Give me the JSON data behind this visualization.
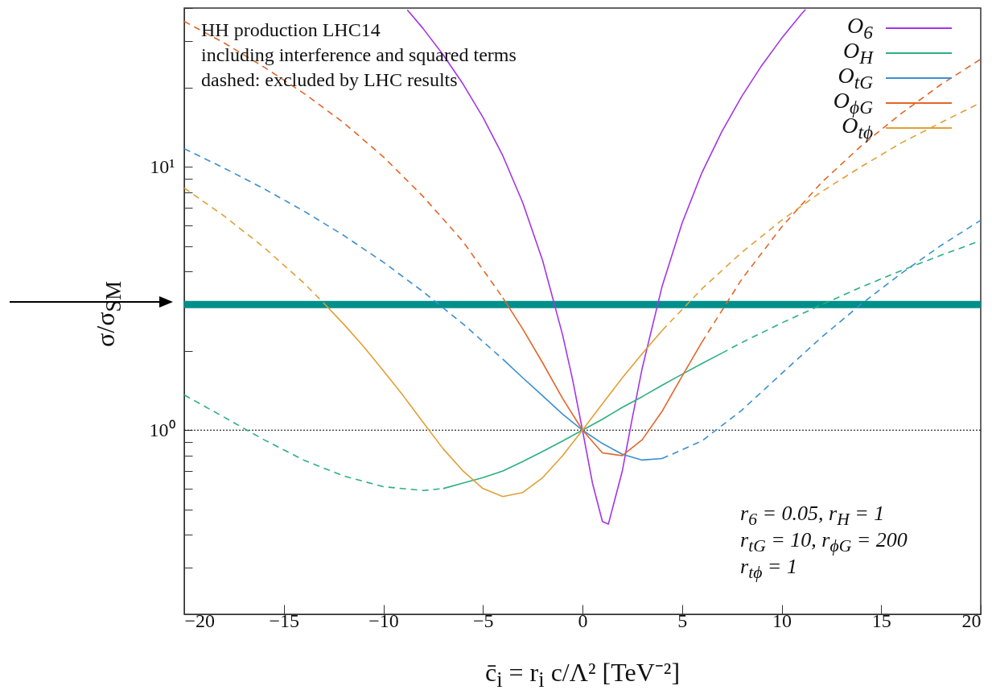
{
  "chart_data": {
    "type": "line",
    "xlabel": "c̄$_{i}$ = r$_{i}$ c/Λ² [TeV⁻²]",
    "ylabel": "σ/σ$_{SM}$",
    "log": "y",
    "xlim": [
      -20,
      20
    ],
    "xticks": [
      -20,
      -15,
      -10,
      -5,
      0,
      5,
      10,
      15,
      20
    ],
    "ylim": [
      0.2,
      40
    ],
    "yticks": [
      {
        "value": 0.2,
        "label": null
      },
      {
        "value": 0.3,
        "label": null
      },
      {
        "value": 0.4,
        "label": null
      },
      {
        "value": 0.5,
        "label": null
      },
      {
        "value": 0.6,
        "label": null
      },
      {
        "value": 0.7,
        "label": null
      },
      {
        "value": 0.8,
        "label": null
      },
      {
        "value": 0.9,
        "label": null
      },
      {
        "value": 1,
        "label": "10⁰"
      },
      {
        "value": 2,
        "label": null
      },
      {
        "value": 3,
        "label": null
      },
      {
        "value": 4,
        "label": null
      },
      {
        "value": 5,
        "label": null
      },
      {
        "value": 6,
        "label": null
      },
      {
        "value": 7,
        "label": null
      },
      {
        "value": 8,
        "label": null
      },
      {
        "value": 9,
        "label": null
      },
      {
        "value": 10,
        "label": "10¹"
      },
      {
        "value": 20,
        "label": null
      },
      {
        "value": 30,
        "label": null
      },
      {
        "value": 40,
        "label": null
      }
    ],
    "legend": "top right",
    "series": [
      {
        "name": "O$_{6}$",
        "color": "#a335e8",
        "line_style": "solid",
        "x": [
          -8.8,
          -8,
          -7,
          -6,
          -5,
          -4,
          -3,
          -2,
          -1,
          -0.5,
          0,
          0.5,
          1,
          1.3,
          2,
          2.5,
          3,
          4,
          5,
          6,
          7,
          8,
          9,
          10,
          11,
          11.2
        ],
        "values": [
          39.4,
          33.4,
          26.6,
          20.6,
          15.4,
          11.0,
          7.3,
          4.4,
          2.3,
          1.56,
          1,
          0.63,
          0.45,
          0.44,
          0.7,
          1.11,
          1.72,
          3.52,
          6.1,
          9.5,
          13.6,
          18.5,
          24.2,
          30.7,
          38.0,
          39.5
        ]
      },
      {
        "name": "O$_{H}$",
        "color": "#2db07f",
        "line_style": "solid",
        "x": [
          -7,
          -6,
          -5,
          -4,
          -3,
          -2,
          -1,
          0,
          1,
          2,
          3,
          4,
          5,
          6,
          7
        ],
        "values": [
          0.6,
          0.63,
          0.66,
          0.7,
          0.76,
          0.83,
          0.91,
          1,
          1.1,
          1.22,
          1.34,
          1.48,
          1.63,
          1.79,
          1.96
        ]
      },
      {
        "name": "O$_{tG}$",
        "color": "#3a8fd0",
        "line_style": "solid",
        "x": [
          -4,
          -3,
          -2,
          -1,
          0,
          1,
          2,
          3,
          4
        ],
        "values": [
          1.86,
          1.58,
          1.35,
          1.15,
          1,
          0.89,
          0.81,
          0.77,
          0.78
        ]
      },
      {
        "name": "O$_{ϕG}$",
        "color": "#e2662a",
        "line_style": "solid",
        "x": [
          -4,
          -3,
          -2,
          -1,
          0,
          1,
          2,
          3,
          4,
          5,
          6
        ],
        "values": [
          3.18,
          2.42,
          1.8,
          1.32,
          1,
          0.82,
          0.8,
          0.92,
          1.18,
          1.6,
          2.16
        ]
      },
      {
        "name": "O$_{tϕ}$",
        "color": "#e0a035",
        "line_style": "solid",
        "x": [
          -13,
          -12,
          -11,
          -10,
          -9,
          -8,
          -7,
          -6,
          -5,
          -4,
          -3,
          -2,
          -1,
          0,
          1,
          2,
          3,
          4
        ],
        "values": [
          3.04,
          2.53,
          2.08,
          1.68,
          1.35,
          1.07,
          0.85,
          0.7,
          0.6,
          0.56,
          0.58,
          0.66,
          0.8,
          1,
          1.26,
          1.58,
          1.95,
          2.39
        ]
      },
      {
        "color": "#2db07f",
        "line_style": "dashed",
        "x": [
          -20,
          -18,
          -16,
          -14,
          -12,
          -10,
          -8,
          -7
        ],
        "values": [
          1.36,
          1.12,
          0.92,
          0.77,
          0.67,
          0.61,
          0.59,
          0.6
        ]
      },
      {
        "color": "#2db07f",
        "line_style": "dashed",
        "x": [
          7,
          8,
          10,
          12,
          14,
          16,
          18,
          20
        ],
        "values": [
          1.96,
          2.15,
          2.55,
          2.99,
          3.49,
          4.03,
          4.61,
          5.24
        ]
      },
      {
        "color": "#3a8fd0",
        "line_style": "dashed",
        "x": [
          -20,
          -18,
          -16,
          -14,
          -12,
          -10,
          -8,
          -6,
          -4
        ],
        "values": [
          11.7,
          9.88,
          8.25,
          6.79,
          5.49,
          4.34,
          3.35,
          2.53,
          1.86
        ]
      },
      {
        "color": "#3a8fd0",
        "line_style": "dashed",
        "x": [
          4,
          6,
          8,
          10,
          12,
          14,
          16,
          18,
          20
        ],
        "values": [
          0.78,
          0.91,
          1.19,
          1.64,
          2.25,
          3.01,
          3.93,
          5.02,
          6.26
        ]
      },
      {
        "color": "#e2662a",
        "line_style": "dashed",
        "x": [
          -20,
          -18,
          -16,
          -14,
          -12,
          -10,
          -8,
          -6,
          -4
        ],
        "values": [
          35.6,
          29.5,
          23.9,
          19.0,
          14.7,
          10.9,
          7.7,
          5.2,
          3.18
        ]
      },
      {
        "color": "#e2662a",
        "line_style": "dashed",
        "x": [
          6,
          8,
          10,
          12,
          14,
          16,
          18,
          20
        ],
        "values": [
          2.16,
          3.74,
          5.9,
          8.7,
          12.0,
          15.9,
          20.5,
          25.6
        ]
      },
      {
        "color": "#e0a035",
        "line_style": "dashed",
        "x": [
          -20,
          -18,
          -16,
          -14,
          -13
        ],
        "values": [
          8.3,
          6.5,
          4.94,
          3.62,
          3.04
        ]
      },
      {
        "color": "#e0a035",
        "line_style": "dashed",
        "x": [
          4,
          6,
          8,
          10,
          12,
          14,
          16,
          18,
          20
        ],
        "values": [
          2.39,
          3.44,
          4.73,
          6.26,
          8.03,
          10.0,
          12.3,
          14.7,
          17.5
        ]
      }
    ],
    "ref_lines": [
      {
        "axis": "y",
        "value": 1,
        "color": "#000000",
        "line_style": "dotted"
      },
      {
        "axis": "y",
        "value": 3,
        "color": "#008f8a",
        "line_style": "solid"
      }
    ],
    "annotations": [
      "HH production LHC14",
      "including interference and squared terms",
      "dashed: excluded by LHC results",
      "r$_{6}$ = 0.05, r$_{H}$ = 1",
      "r$_{tG}$ = 10, r$_{ϕG}$ = 200",
      "r$_{tϕ}$ = 1"
    ]
  }
}
